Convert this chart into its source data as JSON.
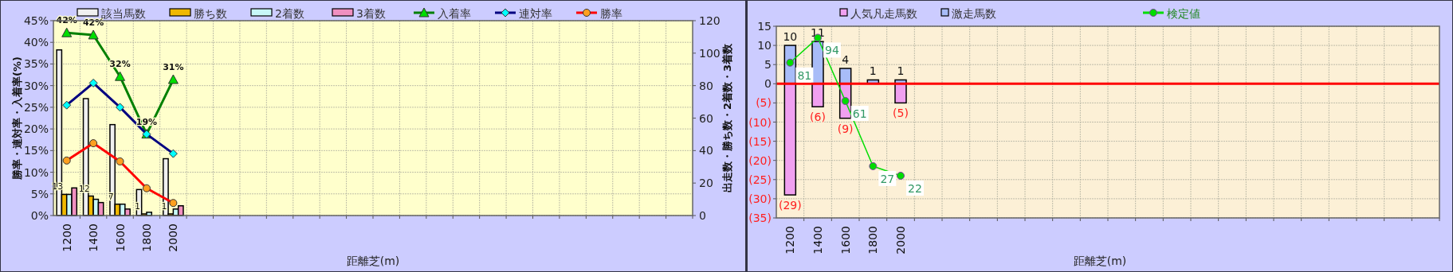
{
  "chart_data": [
    {
      "type": "bar",
      "xlabel": "距離芝(m)",
      "ylabel": "勝率・連対率・入着率(%)",
      "y2label": "出走数・勝ち数・2着数・3着数",
      "categories": [
        "1200",
        "1400",
        "1600",
        "1800",
        "2000",
        null,
        null,
        null,
        null,
        null,
        null,
        null,
        null,
        null,
        null,
        null,
        null,
        null,
        null,
        null,
        null,
        null,
        null,
        null
      ],
      "series": [
        {
          "name": "該当馬数",
          "axis": "y2",
          "color": "#f0f0f0",
          "values": [
            102,
            72,
            56,
            16,
            35,
            null,
            null,
            null,
            null,
            null,
            null,
            null,
            null,
            null,
            null,
            null,
            null,
            null,
            null,
            null,
            null,
            null,
            null,
            null
          ]
        },
        {
          "name": "勝ち数",
          "axis": "y2",
          "color": "#f0b800",
          "values": [
            13,
            12,
            7,
            1,
            1,
            null,
            null,
            null,
            null,
            null,
            null,
            null,
            null,
            null,
            null,
            null,
            null,
            null,
            null,
            null,
            null,
            null,
            null,
            null
          ],
          "value_labels": [
            "13",
            "12",
            "7",
            "1",
            "1",
            null,
            null,
            null,
            null,
            null,
            null,
            null,
            null,
            null,
            null,
            null,
            null,
            null,
            null,
            null,
            null,
            null,
            null,
            null
          ]
        },
        {
          "name": "2着数",
          "axis": "y2",
          "color": "#c8f8f8",
          "values": [
            13,
            10,
            7,
            2,
            4,
            null,
            null,
            null,
            null,
            null,
            null,
            null,
            null,
            null,
            null,
            null,
            null,
            null,
            null,
            null,
            null,
            null,
            null,
            null
          ]
        },
        {
          "name": "3着数",
          "axis": "y2",
          "color": "#f090c0",
          "values": [
            17,
            8,
            4,
            0,
            6,
            null,
            null,
            null,
            null,
            null,
            null,
            null,
            null,
            null,
            null,
            null,
            null,
            null,
            null,
            null,
            null,
            null,
            null,
            null
          ]
        },
        {
          "name": "入着率",
          "type": "line",
          "color": "#008000",
          "marker": "triangle",
          "values": [
            42.2,
            41.7,
            32.1,
            18.8,
            31.4,
            null,
            null,
            null,
            null,
            null,
            null,
            null,
            null,
            null,
            null,
            null,
            null,
            null,
            null,
            null,
            null,
            null,
            null,
            null
          ],
          "value_labels": [
            "42%",
            "42%",
            "32%",
            "19%",
            "31%",
            null,
            null,
            null,
            null,
            null,
            null,
            null,
            null,
            null,
            null,
            null,
            null,
            null,
            null,
            null,
            null,
            null,
            null,
            null
          ]
        },
        {
          "name": "連対率",
          "type": "line",
          "color": "#000080",
          "marker": "diamond",
          "values": [
            25.5,
            30.6,
            25.0,
            18.8,
            14.3,
            null,
            null,
            null,
            null,
            null,
            null,
            null,
            null,
            null,
            null,
            null,
            null,
            null,
            null,
            null,
            null,
            null,
            null,
            null
          ]
        },
        {
          "name": "勝率",
          "type": "line",
          "color": "#ff0000",
          "marker": "circle",
          "values": [
            12.7,
            16.7,
            12.5,
            6.3,
            2.9,
            null,
            null,
            null,
            null,
            null,
            null,
            null,
            null,
            null,
            null,
            null,
            null,
            null,
            null,
            null,
            null,
            null,
            null,
            null
          ]
        }
      ],
      "ylim": [
        0,
        45
      ],
      "yticks": [
        {
          "value": 0,
          "label": "0%"
        },
        {
          "value": 5,
          "label": "5%"
        },
        {
          "value": 10,
          "label": "10%"
        },
        {
          "value": 15,
          "label": "15%"
        },
        {
          "value": 20,
          "label": "20%"
        },
        {
          "value": 25,
          "label": "25%"
        },
        {
          "value": 30,
          "label": "30%"
        },
        {
          "value": 35,
          "label": "35%"
        },
        {
          "value": 40,
          "label": "40%"
        },
        {
          "value": 45,
          "label": "45%"
        }
      ],
      "y2lim": [
        0,
        120
      ],
      "y2ticks": [
        0,
        20,
        40,
        60,
        80,
        100,
        120
      ],
      "grid": true,
      "legend": "top"
    },
    {
      "type": "bar",
      "xlabel": "距離芝(m)",
      "categories": [
        "1200",
        "1400",
        "1600",
        "1800",
        "2000",
        null,
        null,
        null,
        null,
        null,
        null,
        null,
        null,
        null,
        null,
        null,
        null,
        null,
        null,
        null,
        null,
        null,
        null,
        null
      ],
      "stacked": true,
      "series": [
        {
          "name": "人気凡走馬数",
          "color": "#f0a0f0",
          "values": [
            -29,
            -6,
            -9,
            0,
            -5,
            null,
            null,
            null,
            null,
            null,
            null,
            null,
            null,
            null,
            null,
            null,
            null,
            null,
            null,
            null,
            null,
            null,
            null,
            null
          ],
          "value_labels": [
            "(29)",
            "(6)",
            "(9)",
            null,
            "(5)",
            null,
            null,
            null,
            null,
            null,
            null,
            null,
            null,
            null,
            null,
            null,
            null,
            null,
            null,
            null,
            null,
            null,
            null,
            null
          ]
        },
        {
          "name": "激走馬数",
          "color": "#a8bcf8",
          "values": [
            10,
            11,
            4,
            1,
            1,
            null,
            null,
            null,
            null,
            null,
            null,
            null,
            null,
            null,
            null,
            null,
            null,
            null,
            null,
            null,
            null,
            null,
            null,
            null
          ],
          "value_labels": [
            "10",
            "11",
            "4",
            "1",
            "1",
            null,
            null,
            null,
            null,
            null,
            null,
            null,
            null,
            null,
            null,
            null,
            null,
            null,
            null,
            null,
            null,
            null,
            null,
            null
          ]
        },
        {
          "name": "検定値",
          "type": "line",
          "axis": "y2",
          "color": "#00dd00",
          "marker": "circle",
          "values": [
            81,
            94,
            61,
            27,
            22,
            null,
            null,
            null,
            null,
            null,
            null,
            null,
            null,
            null,
            null,
            null,
            null,
            null,
            null,
            null,
            null,
            null,
            null,
            null
          ],
          "value_labels": [
            "81",
            "94",
            "61",
            "27",
            "22",
            null,
            null,
            null,
            null,
            null,
            null,
            null,
            null,
            null,
            null,
            null,
            null,
            null,
            null,
            null,
            null,
            null,
            null,
            null
          ]
        }
      ],
      "ylim": [
        -35,
        15
      ],
      "yticks": [
        {
          "value": -35,
          "label": "(35)"
        },
        {
          "value": -30,
          "label": "(30)"
        },
        {
          "value": -25,
          "label": "(25)"
        },
        {
          "value": -20,
          "label": "(20)"
        },
        {
          "value": -15,
          "label": "(15)"
        },
        {
          "value": -10,
          "label": "(10)"
        },
        {
          "value": -5,
          "label": "(5)"
        },
        0,
        5,
        10,
        15
      ],
      "y2lim": [
        0,
        100
      ],
      "ref_lines": [
        {
          "axis": "y",
          "value": 0,
          "color": "#ff0000"
        }
      ],
      "grid": true,
      "legend": "top"
    }
  ]
}
